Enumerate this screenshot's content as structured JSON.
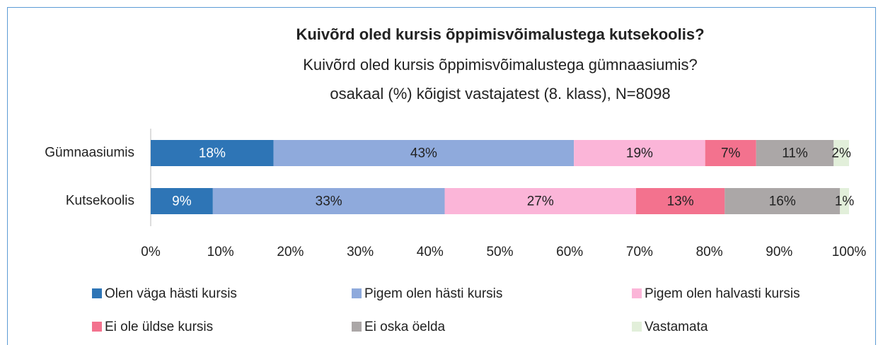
{
  "chart_data": {
    "type": "stacked_barh",
    "title": "Kuivõrd oled kursis õppimisvõimalustega kutsekoolis?",
    "subtitle": [
      "Kuivõrd oled kursis õppimisvõimalustega gümnaasiumis?",
      "osakaal (%) kõigist vastajatest (8. klass), N=8098"
    ],
    "categories": [
      "Gümnaasiumis",
      "Kutsekoolis"
    ],
    "series": [
      {
        "name": "Olen väga hästi kursis",
        "color": "#2e75b6",
        "values": [
          17.6,
          8.9
        ],
        "value_labels": [
          "18%",
          "9%"
        ]
      },
      {
        "name": "Pigem olen hästi kursis",
        "color": "#8faadc",
        "values": [
          43,
          33.2
        ],
        "value_labels": [
          "43%",
          "33%"
        ]
      },
      {
        "name": "Pigem olen halvasti kursis",
        "color": "#fbb5d8",
        "values": [
          18.8,
          27.4
        ],
        "value_labels": [
          "19%",
          "27%"
        ]
      },
      {
        "name": "Ei ole üldse kursis",
        "color": "#f3728e",
        "values": [
          7.3,
          12.7
        ],
        "value_labels": [
          "7%",
          "13%"
        ]
      },
      {
        "name": "Ei oska öelda",
        "color": "#aba7a7",
        "values": [
          11.1,
          16.5
        ],
        "value_labels": [
          "11%",
          "16%"
        ]
      },
      {
        "name": "Vastamata",
        "color": "#e2efda",
        "values": [
          2.2,
          1.3
        ],
        "value_labels": [
          "2%",
          "1%"
        ]
      }
    ],
    "xlim": [
      0,
      100
    ],
    "xticks": [
      {
        "value": 0,
        "label": "0%"
      },
      {
        "value": 10,
        "label": "10%"
      },
      {
        "value": 20,
        "label": "20%"
      },
      {
        "value": 30,
        "label": "30%"
      },
      {
        "value": 40,
        "label": "40%"
      },
      {
        "value": 50,
        "label": "50%"
      },
      {
        "value": 60,
        "label": "60%"
      },
      {
        "value": 70,
        "label": "70%"
      },
      {
        "value": 80,
        "label": "80%"
      },
      {
        "value": 90,
        "label": "90%"
      },
      {
        "value": 100,
        "label": "100%"
      }
    ]
  }
}
